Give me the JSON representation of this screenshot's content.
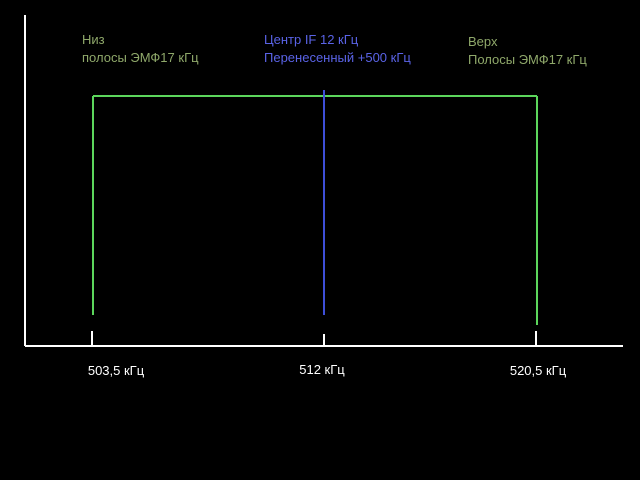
{
  "colors": {
    "background": "#000000",
    "axis": "#ffffff",
    "band": "#5cd65c",
    "center": "#3e4fd8",
    "band_label": "#8fa86a",
    "center_label": "#5a63e6",
    "tick_text": "#ffffff"
  },
  "labels": {
    "low_edge": {
      "line1": "Низ",
      "line2": "полосы ЭМФ17 кГц"
    },
    "center": {
      "line1": "Центр IF 12 кГц",
      "line2": "Перенесенный +500 кГц"
    },
    "high_edge": {
      "line1": "Верх",
      "line2": "Полосы ЭМФ17 кГц"
    }
  },
  "ticks": [
    {
      "label": "503,5 кГц",
      "value": 503.5
    },
    {
      "label": "512 кГц",
      "value": 512
    },
    {
      "label": "520,5 кГц",
      "value": 520.5
    }
  ]
}
